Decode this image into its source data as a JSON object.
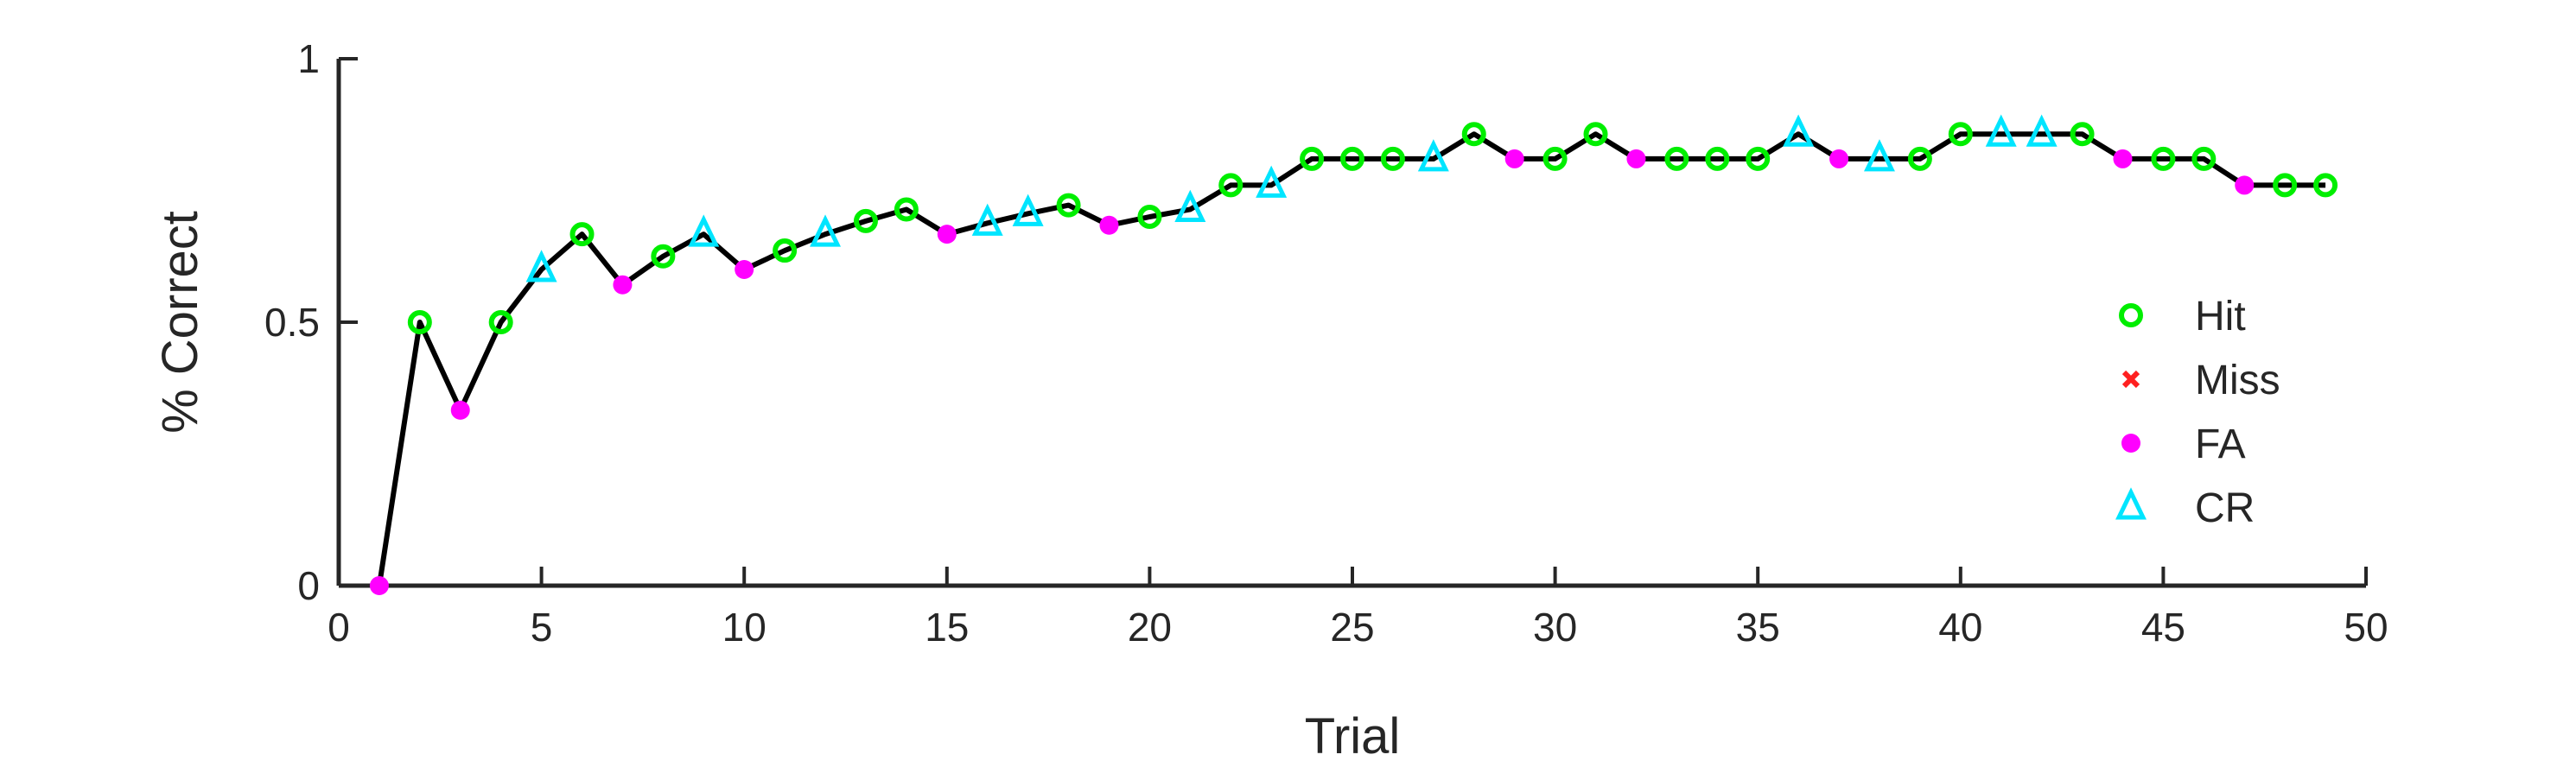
{
  "chart_data": {
    "type": "line",
    "title": "",
    "xlabel": "Trial",
    "ylabel": "% Correct",
    "xlim": [
      0,
      50
    ],
    "ylim": [
      0,
      1
    ],
    "xticks": [
      0,
      5,
      10,
      15,
      20,
      25,
      30,
      35,
      40,
      45,
      50
    ],
    "xtick_labels": [
      "0",
      "5",
      "10",
      "15",
      "20",
      "25",
      "30",
      "35",
      "40",
      "45",
      "50"
    ],
    "yticks": [
      0,
      0.5,
      1
    ],
    "ytick_labels": [
      "0",
      "0.5",
      "1"
    ],
    "grid": false,
    "legend_position": "right",
    "line_color": "#000000",
    "x": [
      1,
      2,
      3,
      4,
      5,
      6,
      7,
      8,
      9,
      10,
      11,
      12,
      13,
      14,
      15,
      16,
      17,
      18,
      19,
      20,
      21,
      22,
      23,
      24,
      25,
      26,
      27,
      28,
      29,
      30,
      31,
      32,
      33,
      34,
      35,
      36,
      37,
      38,
      39,
      40,
      41,
      42,
      43,
      44,
      45,
      46,
      47,
      48,
      49
    ],
    "y": [
      0,
      0.5,
      0.333,
      0.5,
      0.6,
      0.667,
      0.571,
      0.625,
      0.667,
      0.6,
      0.636,
      0.667,
      0.692,
      0.714,
      0.667,
      0.688,
      0.706,
      0.722,
      0.684,
      0.7,
      0.714,
      0.76,
      0.76,
      0.81,
      0.81,
      0.81,
      0.81,
      0.857,
      0.81,
      0.81,
      0.857,
      0.81,
      0.81,
      0.81,
      0.81,
      0.857,
      0.81,
      0.81,
      0.81,
      0.857,
      0.857,
      0.857,
      0.857,
      0.81,
      0.81,
      0.81,
      0.76,
      0.76,
      0.76
    ],
    "outcomes": [
      "FA",
      "Hit",
      "FA",
      "Hit",
      "CR",
      "Hit",
      "FA",
      "Hit",
      "CR",
      "FA",
      "Hit",
      "CR",
      "Hit",
      "Hit",
      "FA",
      "CR",
      "CR",
      "Hit",
      "FA",
      "Hit",
      "CR",
      "Hit",
      "CR",
      "Hit",
      "Hit",
      "Hit",
      "CR",
      "Hit",
      "FA",
      "Hit",
      "Hit",
      "FA",
      "Hit",
      "Hit",
      "Hit",
      "CR",
      "FA",
      "CR",
      "Hit",
      "Hit",
      "CR",
      "CR",
      "Hit",
      "FA",
      "Hit",
      "Hit",
      "FA",
      "Hit",
      "Hit"
    ],
    "series": [
      {
        "name": "Hit",
        "marker": "circle",
        "color": "#00ee00"
      },
      {
        "name": "Miss",
        "marker": "x",
        "color": "#ff2020"
      },
      {
        "name": "FA",
        "marker": "dot",
        "color": "#ff00ff"
      },
      {
        "name": "CR",
        "marker": "triangle",
        "color": "#00e5ff"
      }
    ]
  }
}
